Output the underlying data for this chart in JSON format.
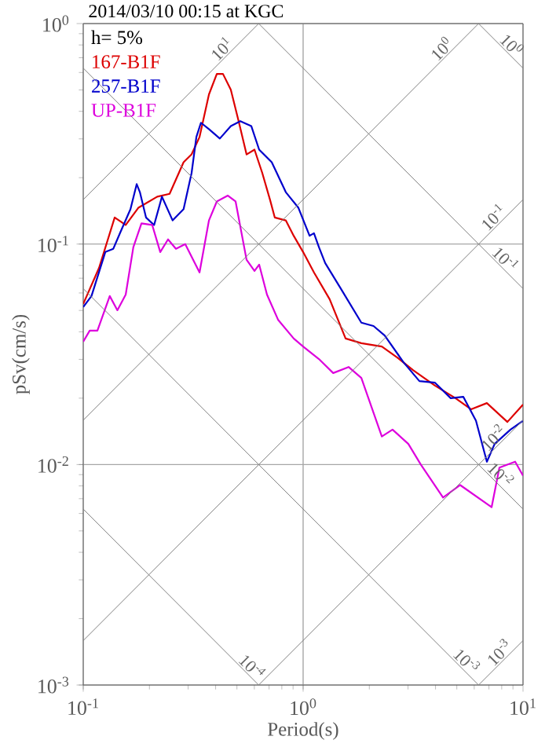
{
  "chart_data": {
    "type": "line",
    "title": "2014/03/10 00:15 at KGC",
    "xlabel": "Period(s)",
    "ylabel": "pSv(cm/s)",
    "legend_title": "h= 5%",
    "legend": "top left",
    "log": "xy",
    "grid": true,
    "xlim": [
      0.1,
      10
    ],
    "ylim": [
      0.001,
      1
    ],
    "xticks": [
      {
        "value": 0.1,
        "label": "10$^{-1}$"
      },
      {
        "value": 1,
        "label": "10$^{0}$"
      },
      {
        "value": 10,
        "label": "10$^{1}$"
      }
    ],
    "yticks": [
      {
        "value": 0.001,
        "label": "10$^{-3}$"
      },
      {
        "value": 0.01,
        "label": "10$^{-2}$"
      },
      {
        "value": 0.1,
        "label": "10$^{-1}$"
      },
      {
        "value": 1,
        "label": "10$^{0}$"
      }
    ],
    "series": [
      {
        "name": "167-B1F",
        "color": "#dd0000",
        "x": [
          0.1,
          0.118,
          0.139,
          0.156,
          0.178,
          0.217,
          0.247,
          0.286,
          0.311,
          0.338,
          0.373,
          0.405,
          0.432,
          0.469,
          0.509,
          0.553,
          0.601,
          0.652,
          0.708,
          0.743,
          0.834,
          0.906,
          1.0,
          1.12,
          1.32,
          1.56,
          1.84,
          2.28,
          2.68,
          3.16,
          3.98,
          4.93,
          5.81,
          6.85,
          8.49,
          10
        ],
        "values": [
          0.0535,
          0.078,
          0.132,
          0.122,
          0.146,
          0.164,
          0.169,
          0.235,
          0.255,
          0.306,
          0.477,
          0.591,
          0.591,
          0.501,
          0.361,
          0.255,
          0.268,
          0.21,
          0.158,
          0.132,
          0.128,
          0.109,
          0.092,
          0.0744,
          0.0562,
          0.0373,
          0.0355,
          0.0343,
          0.0306,
          0.0268,
          0.0228,
          0.02,
          0.0178,
          0.019,
          0.0156,
          0.0187
        ]
      },
      {
        "name": "257-B1F",
        "color": "#0000cc",
        "x": [
          0.1,
          0.109,
          0.126,
          0.137,
          0.148,
          0.164,
          0.175,
          0.181,
          0.193,
          0.21,
          0.228,
          0.255,
          0.286,
          0.311,
          0.327,
          0.343,
          0.373,
          0.418,
          0.469,
          0.518,
          0.581,
          0.631,
          0.72,
          0.834,
          0.952,
          1.07,
          1.12,
          1.18,
          1.26,
          1.48,
          1.84,
          2.09,
          2.35,
          2.86,
          3.38,
          3.98,
          4.69,
          5.35,
          6.11,
          6.85,
          7.43,
          8.77,
          10
        ],
        "values": [
          0.0518,
          0.0581,
          0.092,
          0.0952,
          0.114,
          0.144,
          0.187,
          0.172,
          0.132,
          0.122,
          0.164,
          0.128,
          0.144,
          0.21,
          0.306,
          0.355,
          0.332,
          0.301,
          0.343,
          0.361,
          0.343,
          0.268,
          0.235,
          0.172,
          0.146,
          0.109,
          0.112,
          0.0968,
          0.082,
          0.0631,
          0.044,
          0.0425,
          0.0385,
          0.0291,
          0.0239,
          0.0235,
          0.02,
          0.0203,
          0.0158,
          0.0103,
          0.0124,
          0.0144,
          0.0158
        ]
      },
      {
        "name": "UP-B1F",
        "color": "#dd00dd",
        "x": [
          0.1,
          0.107,
          0.116,
          0.132,
          0.143,
          0.156,
          0.169,
          0.184,
          0.206,
          0.224,
          0.243,
          0.264,
          0.291,
          0.338,
          0.373,
          0.405,
          0.454,
          0.493,
          0.553,
          0.601,
          0.631,
          0.685,
          0.769,
          0.906,
          1.0,
          1.18,
          1.37,
          1.61,
          1.84,
          2.28,
          2.55,
          3.01,
          3.43,
          4.33,
          5.18,
          7.2,
          7.81,
          9.21,
          10
        ],
        "values": [
          0.0361,
          0.0405,
          0.0405,
          0.0581,
          0.0501,
          0.059,
          0.0968,
          0.124,
          0.122,
          0.092,
          0.105,
          0.0952,
          0.1,
          0.0744,
          0.128,
          0.156,
          0.166,
          0.156,
          0.0849,
          0.0756,
          0.0807,
          0.059,
          0.0454,
          0.0373,
          0.0343,
          0.0301,
          0.026,
          0.0277,
          0.0247,
          0.0134,
          0.0144,
          0.0124,
          0.01,
          0.00708,
          0.00807,
          0.00641,
          0.00968,
          0.0103,
          0.00891
        ]
      },
      {
        "color": "#808080",
        "x": [
          0.1,
          0.628
        ],
        "values": [
          0.159,
          1
        ]
      },
      {
        "color": "#808080",
        "x": [
          0.1,
          6.28
        ],
        "values": [
          0.0159,
          1
        ]
      },
      {
        "color": "#808080",
        "x": [
          0.1,
          10
        ],
        "values": [
          0.00159,
          0.159
        ]
      },
      {
        "color": "#808080",
        "x": [
          0.628,
          10
        ],
        "values": [
          0.001,
          0.0159
        ]
      },
      {
        "color": "#808080",
        "x": [
          6.28,
          10
        ],
        "values": [
          0.001,
          0.00159
        ]
      },
      {
        "color": "#808080",
        "x": [
          6.28,
          10
        ],
        "values": [
          1,
          0.628
        ]
      },
      {
        "color": "#808080",
        "x": [
          0.628,
          10
        ],
        "values": [
          1,
          0.0628
        ]
      },
      {
        "color": "#808080",
        "x": [
          0.1,
          10
        ],
        "values": [
          0.628,
          0.00628
        ]
      },
      {
        "color": "#808080",
        "x": [
          0.1,
          6.28
        ],
        "values": [
          0.0628,
          0.001
        ]
      },
      {
        "color": "#808080",
        "x": [
          0.1,
          0.628
        ],
        "values": [
          0.00628,
          0.001
        ]
      }
    ],
    "annotations": [
      {
        "text": "10$^{1}$",
        "x": 0.454,
        "y": 0.722
      },
      {
        "text": "10$^{0}$",
        "x": 4.54,
        "y": 0.722
      },
      {
        "text": "10$^{0}$",
        "x": 8.34,
        "y": 0.753
      },
      {
        "text": "10$^{-1}$",
        "x": 7.81,
        "y": 0.1243
      },
      {
        "text": "10$^{-1}$",
        "x": 7.81,
        "y": 0.0804
      },
      {
        "text": "10$^{-2}$",
        "x": 7.81,
        "y": 0.01243
      },
      {
        "text": "10$^{-2}$",
        "x": 7.43,
        "y": 0.00846
      },
      {
        "text": "10$^{-4}$",
        "x": 0.55,
        "y": 0.00114
      },
      {
        "text": "10$^{-3}$",
        "x": 5.2,
        "y": 0.00121
      },
      {
        "text": "10$^{-3}$",
        "x": 8.3,
        "y": 0.00132
      }
    ]
  }
}
